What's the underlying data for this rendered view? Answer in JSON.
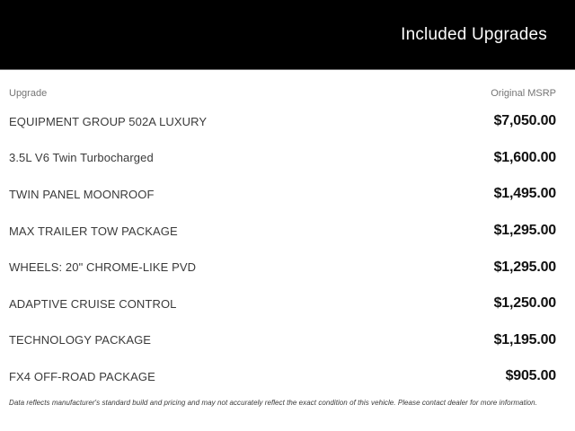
{
  "header": {
    "title": "Included Upgrades"
  },
  "table": {
    "columns": {
      "upgrade_label": "Upgrade",
      "msrp_label": "Original MSRP"
    },
    "rows": [
      {
        "name": "EQUIPMENT GROUP 502A LUXURY",
        "price": "$7,050.00"
      },
      {
        "name": "3.5L V6 Twin Turbocharged",
        "price": "$1,600.00"
      },
      {
        "name": "TWIN PANEL MOONROOF",
        "price": "$1,495.00"
      },
      {
        "name": "MAX TRAILER TOW PACKAGE",
        "price": "$1,295.00"
      },
      {
        "name": "WHEELS: 20\" CHROME-LIKE PVD",
        "price": "$1,295.00"
      },
      {
        "name": "ADAPTIVE CRUISE CONTROL",
        "price": "$1,250.00"
      },
      {
        "name": "TECHNOLOGY PACKAGE",
        "price": "$1,195.00"
      },
      {
        "name": "FX4 OFF-ROAD PACKAGE",
        "price": "$905.00"
      }
    ]
  },
  "footer": {
    "disclaimer": "Data reflects manufacturer's standard build and pricing and may not accurately reflect the exact condition of this vehicle. Please contact dealer for more information."
  },
  "colors": {
    "header_bg": "#000000",
    "header_text": "#fbfbfb",
    "column_label": "#757575",
    "row_name": "#3a3a3a",
    "row_price": "#111111"
  }
}
